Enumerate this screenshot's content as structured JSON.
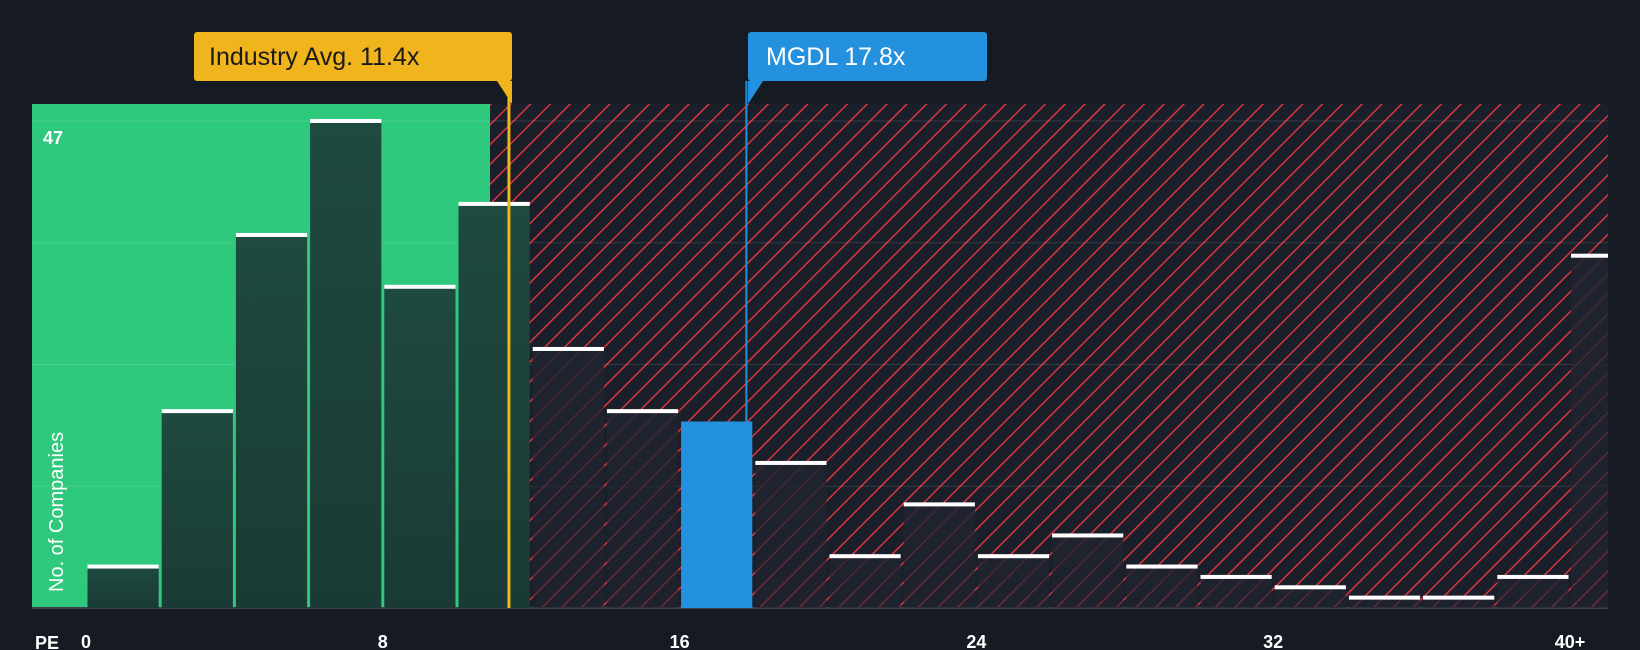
{
  "chart_data": {
    "type": "bar",
    "title": "",
    "xlabel": "PE",
    "ylabel": "No. of Companies",
    "ymax_label": "47",
    "ylim": [
      0,
      47
    ],
    "xlim": [
      -2,
      41
    ],
    "x_ticks": [
      {
        "value": 0,
        "label": "0"
      },
      {
        "value": 8,
        "label": "8"
      },
      {
        "value": 16,
        "label": "16"
      },
      {
        "value": 24,
        "label": "24"
      },
      {
        "value": 32,
        "label": "32"
      },
      {
        "value": 40,
        "label": "40+"
      }
    ],
    "bins": [
      {
        "x0": 0,
        "x1": 2,
        "value": 4
      },
      {
        "x0": 2,
        "x1": 4,
        "value": 19
      },
      {
        "x0": 4,
        "x1": 6,
        "value": 36
      },
      {
        "x0": 6,
        "x1": 8,
        "value": 47
      },
      {
        "x0": 8,
        "x1": 10,
        "value": 31
      },
      {
        "x0": 10,
        "x1": 12,
        "value": 39
      },
      {
        "x0": 12,
        "x1": 14,
        "value": 25
      },
      {
        "x0": 14,
        "x1": 16,
        "value": 19
      },
      {
        "x0": 16,
        "x1": 18,
        "value": 18,
        "highlight": true
      },
      {
        "x0": 18,
        "x1": 20,
        "value": 14
      },
      {
        "x0": 20,
        "x1": 22,
        "value": 5
      },
      {
        "x0": 22,
        "x1": 24,
        "value": 10
      },
      {
        "x0": 24,
        "x1": 26,
        "value": 5
      },
      {
        "x0": 26,
        "x1": 28,
        "value": 7
      },
      {
        "x0": 28,
        "x1": 30,
        "value": 4
      },
      {
        "x0": 30,
        "x1": 32,
        "value": 3
      },
      {
        "x0": 32,
        "x1": 34,
        "value": 2
      },
      {
        "x0": 34,
        "x1": 36,
        "value": 1
      },
      {
        "x0": 36,
        "x1": 38,
        "value": 1
      },
      {
        "x0": 38,
        "x1": 40,
        "value": 3
      },
      {
        "x0": 40,
        "x1": 41,
        "value": 34
      }
    ],
    "industry_avg": {
      "value": 11.4,
      "label": "Industry Avg. 11.4x"
    },
    "company": {
      "value": 17.8,
      "label": "MGDL 17.8x"
    },
    "colors": {
      "background": "#151a23",
      "green_zone": "#2ec97c",
      "bar_dark": "#1e4a3f",
      "bar_highlight": "#2491de",
      "hatch_line": "#d9343f",
      "industry_callout": "#f0b41c",
      "company_callout": "#2491de",
      "bar_cap": "#ffffff",
      "axis_text": "#ffffff"
    }
  }
}
